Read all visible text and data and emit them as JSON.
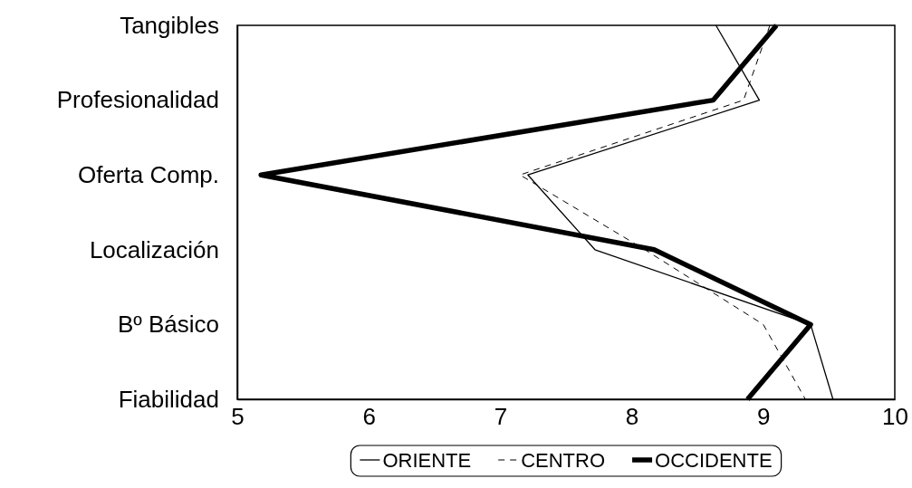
{
  "chart_data": {
    "type": "line",
    "orientation": "horizontal",
    "categories": [
      "Tangibles",
      "Profesionalidad",
      "Oferta Comp.",
      "Localización",
      "Bº Básico",
      "Fiabilidad"
    ],
    "xlim": [
      5,
      10
    ],
    "xticks": [
      5,
      6,
      7,
      8,
      9,
      10
    ],
    "legend": "bottom",
    "grid": false,
    "series": [
      {
        "name": "ORIENTE",
        "color": "#000000",
        "line_style": "solid",
        "values": [
          8.64,
          8.97,
          7.21,
          7.72,
          9.36,
          9.53
        ]
      },
      {
        "name": "CENTRO",
        "color": "#000000",
        "line_style": "dashed",
        "values": [
          9.05,
          8.85,
          7.15,
          8.1,
          9.0,
          9.32
        ]
      },
      {
        "name": "OCCIDENTE",
        "color": "#000000",
        "line_style": "solid",
        "values": [
          9.1,
          8.62,
          5.18,
          8.17,
          9.36,
          8.88
        ]
      }
    ]
  }
}
